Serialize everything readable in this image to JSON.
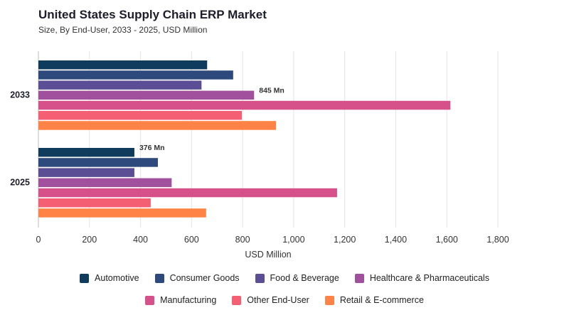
{
  "title": "United States Supply Chain ERP Market",
  "subtitle": "Size, By End-User, 2033 - 2025, USD Million",
  "chart_data": {
    "type": "bar",
    "orientation": "horizontal",
    "categories": [
      "2033",
      "2025"
    ],
    "series": [
      {
        "name": "Automotive",
        "color": "#0f3b5c",
        "values": [
          661,
          376
        ]
      },
      {
        "name": "Consumer Goods",
        "color": "#2e4a7d",
        "values": [
          763,
          468
        ]
      },
      {
        "name": "Food & Beverage",
        "color": "#5c4e94",
        "values": [
          639,
          376
        ]
      },
      {
        "name": "Healthcare & Pharmaceuticals",
        "color": "#a0509c",
        "values": [
          845,
          522
        ]
      },
      {
        "name": "Manufacturing",
        "color": "#d6508a",
        "values": [
          1614,
          1170
        ]
      },
      {
        "name": "Other End-User",
        "color": "#f45f74",
        "values": [
          797,
          440
        ]
      },
      {
        "name": "Retail & E-commerce",
        "color": "#ff8346",
        "values": [
          931,
          657
        ]
      }
    ],
    "data_labels": [
      {
        "category": "2033",
        "series": "Healthcare & Pharmaceuticals",
        "text": "845 Mn"
      },
      {
        "category": "2025",
        "series": "Automotive",
        "text": "376 Mn"
      }
    ],
    "xlabel": "USD Million",
    "xlim": [
      0,
      1800
    ],
    "xticks": [
      0,
      200,
      400,
      600,
      800,
      1000,
      1200,
      1400,
      1600,
      1800
    ],
    "xtick_labels": [
      "0",
      "200",
      "400",
      "600",
      "800",
      "1,000",
      "1,200",
      "1,400",
      "1,600",
      "1,800"
    ],
    "grid": true,
    "legend_position": "bottom"
  }
}
